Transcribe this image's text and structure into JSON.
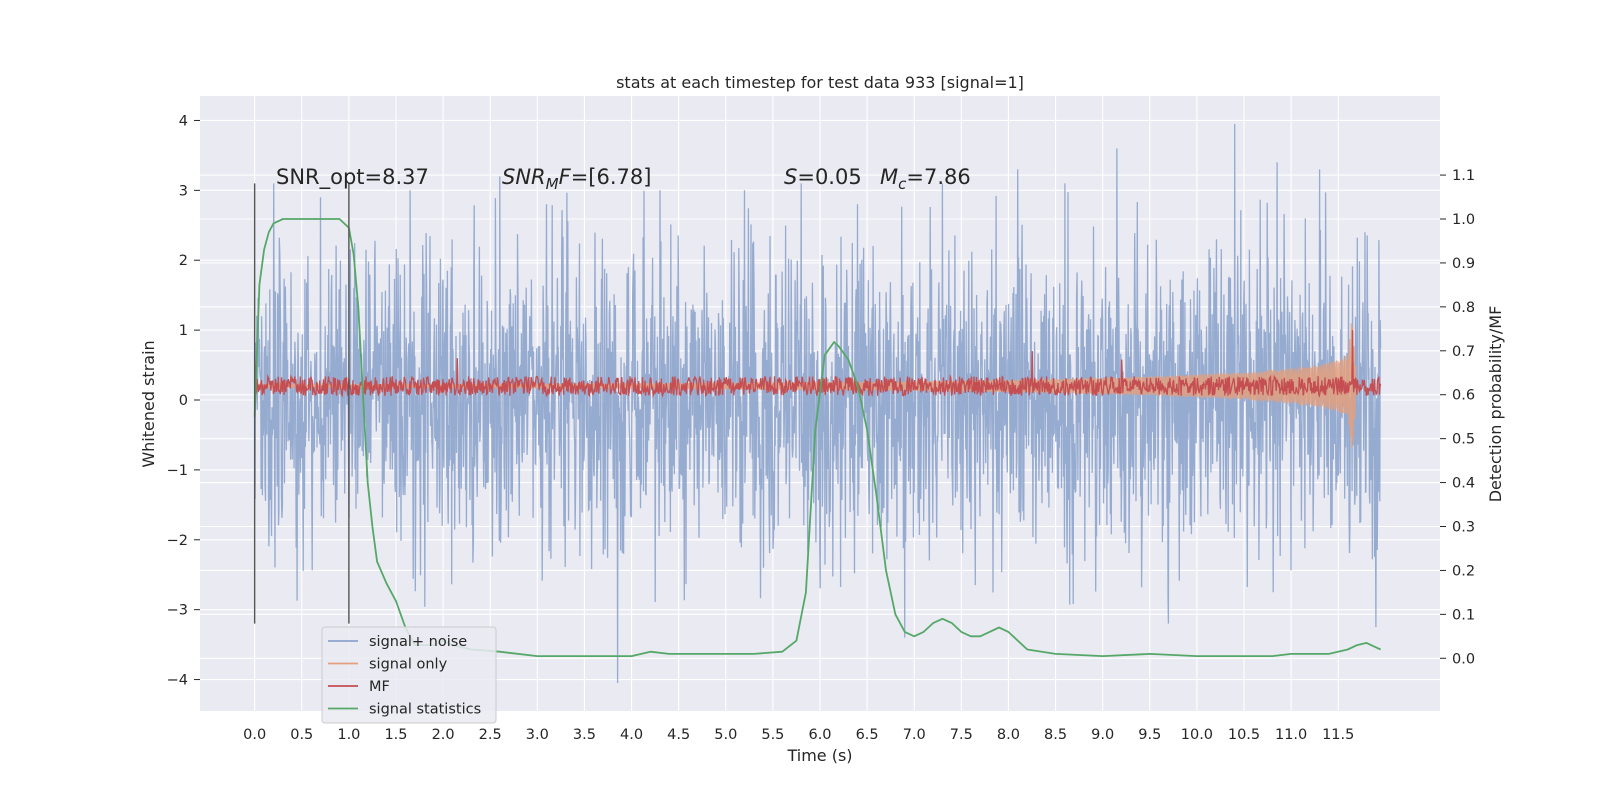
{
  "chart_data": {
    "type": "line",
    "title": "stats at each timestep for test data 933 [signal=1]",
    "xlabel": "Time (s)",
    "ylabel_left": "Whitened strain",
    "ylabel_right": "Detection probability/MF",
    "xlim": [
      -0.58,
      12.58
    ],
    "ylim_left": [
      -4.45,
      4.35
    ],
    "ylim_right": [
      -0.12,
      1.28
    ],
    "x_ticks": [
      0.0,
      0.5,
      1.0,
      1.5,
      2.0,
      2.5,
      3.0,
      3.5,
      4.0,
      4.5,
      5.0,
      5.5,
      6.0,
      6.5,
      7.0,
      7.5,
      8.0,
      8.5,
      9.0,
      9.5,
      10.0,
      10.5,
      11.0,
      11.5
    ],
    "x_tick_labels": [
      "0.0",
      "0.5",
      "1.0",
      "1.5",
      "2.0",
      "2.5",
      "3.0",
      "3.5",
      "4.0",
      "4.5",
      "5.0",
      "5.5",
      "6.0",
      "6.5",
      "7.0",
      "7.5",
      "8.0",
      "8.5",
      "9.0",
      "9.5",
      "10.0",
      "10.5",
      "11.0",
      "11.5"
    ],
    "y_ticks_left": [
      -4,
      -3,
      -2,
      -1,
      0,
      1,
      2,
      3,
      4
    ],
    "y_tick_labels_left": [
      "−4",
      "−3",
      "−2",
      "−1",
      "0",
      "1",
      "2",
      "3",
      "4"
    ],
    "y_ticks_right": [
      0.0,
      0.1,
      0.2,
      0.3,
      0.4,
      0.5,
      0.6,
      0.7,
      0.8,
      0.9,
      1.0,
      1.1
    ],
    "y_tick_labels_right": [
      "0.0",
      "0.1",
      "0.2",
      "0.3",
      "0.4",
      "0.5",
      "0.6",
      "0.7",
      "0.8",
      "0.9",
      "1.0",
      "1.1"
    ],
    "grid": true,
    "legend_position": "lower-left",
    "annotations": {
      "snr_opt": "SNR_opt=8.37",
      "snr_mf_sym": "SNR",
      "snr_mf_sub": "M",
      "snr_mf_rest": "F=[6.78]",
      "s_sym": "S",
      "s_val": "=0.05",
      "mc_sym": "M",
      "mc_sub": "c",
      "mc_val": "=7.86"
    },
    "vlines_x": [
      0.0,
      1.0
    ],
    "series": [
      {
        "name": "signal+ noise",
        "axis": "left",
        "color": "#8da4cc",
        "note_kind": "dense noise, amplitude envelope",
        "x_range": [
          0.0,
          11.95
        ],
        "noise_std": 1.1,
        "peaks_x": [
          0.2,
          0.7,
          1.65,
          2.6,
          3.1,
          3.85,
          4.3,
          5.2,
          5.8,
          6.4,
          6.9,
          7.3,
          8.1,
          8.6,
          9.15,
          9.7,
          10.4,
          10.85,
          11.3,
          11.9
        ],
        "peaks_y": [
          3.1,
          2.9,
          3.0,
          3.2,
          2.8,
          -4.05,
          3.0,
          3.0,
          3.1,
          2.8,
          -3.4,
          3.1,
          3.3,
          3.1,
          3.6,
          -3.2,
          3.95,
          3.4,
          3.3,
          -3.25
        ]
      },
      {
        "name": "signal only",
        "axis": "left",
        "color": "#e39f7e",
        "note_kind": "chirp envelope growing to merger",
        "x": [
          0.0,
          2.0,
          4.0,
          6.0,
          7.0,
          8.0,
          9.0,
          9.5,
          10.0,
          10.5,
          11.0,
          11.3,
          11.5,
          11.6,
          11.65,
          11.7
        ],
        "amplitude": [
          0.02,
          0.03,
          0.04,
          0.06,
          0.07,
          0.09,
          0.12,
          0.14,
          0.17,
          0.2,
          0.26,
          0.31,
          0.38,
          0.45,
          1.05,
          0.0
        ]
      },
      {
        "name": "MF",
        "axis": "left",
        "color": "#c44e52",
        "note_kind": "noisy band around baseline",
        "x_range": [
          0.0,
          11.95
        ],
        "baseline": 0.2,
        "band": 0.14,
        "spikes_x": [
          2.15,
          8.25,
          9.2,
          11.65
        ],
        "spikes_y": [
          0.6,
          0.7,
          0.58,
          1.0
        ]
      },
      {
        "name": "signal statistics",
        "axis": "right",
        "color": "#55a868",
        "x": [
          0.0,
          0.05,
          0.1,
          0.15,
          0.2,
          0.3,
          0.4,
          0.5,
          0.6,
          0.7,
          0.8,
          0.9,
          1.0,
          1.05,
          1.1,
          1.15,
          1.2,
          1.25,
          1.3,
          1.4,
          1.5,
          1.6,
          1.7,
          1.8,
          1.9,
          2.0,
          2.1,
          2.3,
          2.6,
          3.0,
          3.5,
          4.0,
          4.2,
          4.4,
          4.7,
          5.0,
          5.3,
          5.6,
          5.75,
          5.85,
          5.95,
          6.05,
          6.15,
          6.2,
          6.3,
          6.4,
          6.5,
          6.6,
          6.7,
          6.8,
          6.9,
          7.0,
          7.1,
          7.2,
          7.3,
          7.4,
          7.5,
          7.6,
          7.7,
          7.8,
          7.9,
          8.0,
          8.2,
          8.5,
          9.0,
          9.5,
          10.0,
          10.5,
          10.8,
          11.0,
          11.2,
          11.4,
          11.6,
          11.7,
          11.8,
          11.9,
          11.95
        ],
        "y": [
          0.55,
          0.85,
          0.93,
          0.97,
          0.99,
          1.0,
          1.0,
          1.0,
          1.0,
          1.0,
          1.0,
          1.0,
          0.98,
          0.92,
          0.8,
          0.6,
          0.4,
          0.3,
          0.22,
          0.17,
          0.13,
          0.07,
          0.03,
          0.03,
          0.03,
          0.04,
          0.03,
          0.02,
          0.015,
          0.005,
          0.005,
          0.005,
          0.015,
          0.01,
          0.01,
          0.01,
          0.01,
          0.015,
          0.04,
          0.15,
          0.52,
          0.69,
          0.72,
          0.71,
          0.68,
          0.62,
          0.52,
          0.37,
          0.2,
          0.1,
          0.06,
          0.05,
          0.06,
          0.08,
          0.09,
          0.08,
          0.06,
          0.05,
          0.05,
          0.06,
          0.07,
          0.06,
          0.02,
          0.01,
          0.005,
          0.01,
          0.005,
          0.005,
          0.005,
          0.01,
          0.01,
          0.01,
          0.02,
          0.03,
          0.035,
          0.025,
          0.02
        ]
      }
    ]
  }
}
